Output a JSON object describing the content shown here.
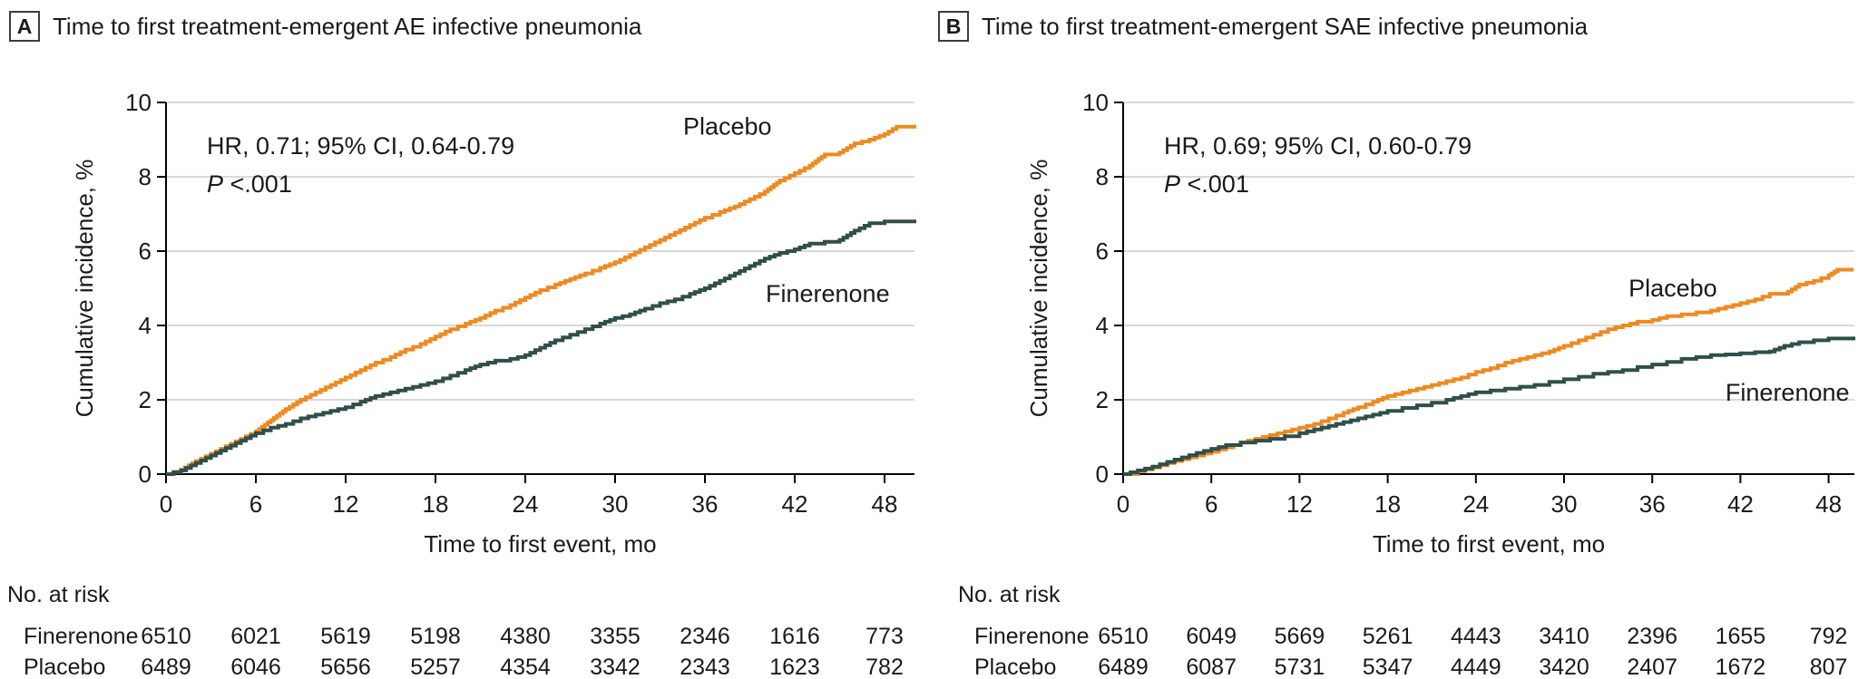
{
  "figure": {
    "panels": [
      {
        "letter": "A",
        "title": "Time to first treatment-emergent AE infective pneumonia"
      },
      {
        "letter": "B",
        "title": "Time to first treatment-emergent SAE infective pneumonia"
      }
    ]
  },
  "chart_data": [
    {
      "type": "line",
      "subtype": "kaplan-meier-cumulative-incidence",
      "panel_letter": "A",
      "title": "Time to first treatment-emergent AE infective pneumonia",
      "xlabel": "Time to first event, mo",
      "ylabel": "Cumulative incidence, %",
      "xlim": [
        0,
        50
      ],
      "ylim": [
        0,
        10
      ],
      "xticks": [
        0,
        6,
        12,
        18,
        24,
        30,
        36,
        42,
        48
      ],
      "yticks": [
        0,
        2,
        4,
        6,
        8,
        10
      ],
      "grid": true,
      "gridline_color": "#D9D9D9",
      "annotation": {
        "hr_line": "HR, 0.71; 95% CI, 0.64-0.79",
        "p_italic": "P",
        "p_rest": " <.001"
      },
      "series": [
        {
          "name": "Placebo",
          "color": "#EE8A22",
          "label_x": 37.5,
          "label_y": 9.35,
          "points": [
            [
              0,
              0
            ],
            [
              1,
              0.12
            ],
            [
              2,
              0.35
            ],
            [
              3,
              0.55
            ],
            [
              4,
              0.75
            ],
            [
              5,
              0.95
            ],
            [
              6,
              1.15
            ],
            [
              7,
              1.45
            ],
            [
              8,
              1.75
            ],
            [
              9,
              2.0
            ],
            [
              10,
              2.2
            ],
            [
              11,
              2.4
            ],
            [
              12,
              2.6
            ],
            [
              13,
              2.8
            ],
            [
              14,
              3.0
            ],
            [
              15,
              3.15
            ],
            [
              16,
              3.35
            ],
            [
              17,
              3.5
            ],
            [
              18,
              3.7
            ],
            [
              19,
              3.9
            ],
            [
              20,
              4.05
            ],
            [
              21,
              4.2
            ],
            [
              22,
              4.4
            ],
            [
              23,
              4.55
            ],
            [
              24,
              4.75
            ],
            [
              25,
              4.95
            ],
            [
              26,
              5.1
            ],
            [
              27,
              5.25
            ],
            [
              28,
              5.4
            ],
            [
              29,
              5.55
            ],
            [
              30,
              5.7
            ],
            [
              31,
              5.9
            ],
            [
              32,
              6.1
            ],
            [
              33,
              6.3
            ],
            [
              34,
              6.5
            ],
            [
              35,
              6.7
            ],
            [
              36,
              6.9
            ],
            [
              37,
              7.05
            ],
            [
              38,
              7.2
            ],
            [
              39,
              7.4
            ],
            [
              40,
              7.6
            ],
            [
              41,
              7.9
            ],
            [
              42,
              8.1
            ],
            [
              43,
              8.3
            ],
            [
              44,
              8.6
            ],
            [
              45,
              8.65
            ],
            [
              46,
              8.9
            ],
            [
              47,
              9.0
            ],
            [
              48,
              9.15
            ],
            [
              48.8,
              9.35
            ],
            [
              50,
              9.4
            ]
          ]
        },
        {
          "name": "Finerenone",
          "color": "#2F4F4B",
          "label_x": 44.2,
          "label_y": 4.85,
          "points": [
            [
              0,
              0
            ],
            [
              1,
              0.1
            ],
            [
              2,
              0.3
            ],
            [
              3,
              0.5
            ],
            [
              4,
              0.7
            ],
            [
              5,
              0.9
            ],
            [
              6,
              1.1
            ],
            [
              7,
              1.25
            ],
            [
              8,
              1.35
            ],
            [
              9,
              1.5
            ],
            [
              10,
              1.6
            ],
            [
              11,
              1.7
            ],
            [
              12,
              1.8
            ],
            [
              13,
              1.95
            ],
            [
              14,
              2.1
            ],
            [
              15,
              2.2
            ],
            [
              16,
              2.3
            ],
            [
              17,
              2.4
            ],
            [
              18,
              2.5
            ],
            [
              19,
              2.65
            ],
            [
              20,
              2.8
            ],
            [
              21,
              2.95
            ],
            [
              22,
              3.05
            ],
            [
              23,
              3.1
            ],
            [
              24,
              3.2
            ],
            [
              25,
              3.4
            ],
            [
              26,
              3.6
            ],
            [
              27,
              3.75
            ],
            [
              28,
              3.9
            ],
            [
              29,
              4.05
            ],
            [
              30,
              4.2
            ],
            [
              31,
              4.3
            ],
            [
              32,
              4.45
            ],
            [
              33,
              4.6
            ],
            [
              34,
              4.7
            ],
            [
              35,
              4.85
            ],
            [
              36,
              5.0
            ],
            [
              37,
              5.2
            ],
            [
              38,
              5.4
            ],
            [
              39,
              5.6
            ],
            [
              40,
              5.8
            ],
            [
              41,
              5.95
            ],
            [
              42,
              6.05
            ],
            [
              43,
              6.2
            ],
            [
              44,
              6.25
            ],
            [
              45,
              6.3
            ],
            [
              46,
              6.55
            ],
            [
              47,
              6.75
            ],
            [
              48,
              6.8
            ],
            [
              50,
              6.85
            ]
          ]
        }
      ],
      "risk_table": {
        "header": "No. at risk",
        "months": [
          0,
          6,
          12,
          18,
          24,
          30,
          36,
          42,
          48
        ],
        "rows": [
          {
            "name": "Finerenone",
            "counts": [
              "6510",
              "6021",
              "5619",
              "5198",
              "4380",
              "3355",
              "2346",
              "1616",
              "773"
            ]
          },
          {
            "name": "Placebo",
            "counts": [
              "6489",
              "6046",
              "5656",
              "5257",
              "4354",
              "3342",
              "2343",
              "1623",
              "782"
            ]
          }
        ]
      }
    },
    {
      "type": "line",
      "subtype": "kaplan-meier-cumulative-incidence",
      "panel_letter": "B",
      "title": "Time to first treatment-emergent SAE infective pneumonia",
      "xlabel": "Time to first event, mo",
      "ylabel": "Cumulative incidence, %",
      "xlim": [
        0,
        50
      ],
      "ylim": [
        0,
        10
      ],
      "xticks": [
        0,
        6,
        12,
        18,
        24,
        30,
        36,
        42,
        48
      ],
      "yticks": [
        0,
        2,
        4,
        6,
        8,
        10
      ],
      "grid": true,
      "gridline_color": "#D9D9D9",
      "annotation": {
        "hr_line": "HR, 0.69; 95% CI, 0.60-0.79",
        "p_italic": "P",
        "p_rest": " <.001"
      },
      "series": [
        {
          "name": "Placebo",
          "color": "#EE8A22",
          "label_x": 37.4,
          "label_y": 5.0,
          "points": [
            [
              0,
              0
            ],
            [
              1,
              0.08
            ],
            [
              2,
              0.18
            ],
            [
              3,
              0.3
            ],
            [
              4,
              0.4
            ],
            [
              5,
              0.5
            ],
            [
              6,
              0.6
            ],
            [
              7,
              0.72
            ],
            [
              8,
              0.85
            ],
            [
              9,
              0.95
            ],
            [
              10,
              1.05
            ],
            [
              11,
              1.15
            ],
            [
              12,
              1.25
            ],
            [
              13,
              1.35
            ],
            [
              14,
              1.5
            ],
            [
              15,
              1.65
            ],
            [
              16,
              1.8
            ],
            [
              17,
              1.95
            ],
            [
              18,
              2.1
            ],
            [
              19,
              2.2
            ],
            [
              20,
              2.3
            ],
            [
              21,
              2.4
            ],
            [
              22,
              2.5
            ],
            [
              23,
              2.6
            ],
            [
              24,
              2.75
            ],
            [
              25,
              2.85
            ],
            [
              26,
              3.0
            ],
            [
              27,
              3.1
            ],
            [
              28,
              3.2
            ],
            [
              29,
              3.3
            ],
            [
              30,
              3.45
            ],
            [
              31,
              3.6
            ],
            [
              32,
              3.75
            ],
            [
              33,
              3.9
            ],
            [
              34,
              4.0
            ],
            [
              35,
              4.1
            ],
            [
              36,
              4.15
            ],
            [
              37,
              4.25
            ],
            [
              38,
              4.3
            ],
            [
              39,
              4.35
            ],
            [
              40,
              4.4
            ],
            [
              41,
              4.5
            ],
            [
              42,
              4.6
            ],
            [
              43,
              4.7
            ],
            [
              44,
              4.85
            ],
            [
              45,
              4.85
            ],
            [
              46,
              5.1
            ],
            [
              47,
              5.2
            ],
            [
              48,
              5.35
            ],
            [
              48.6,
              5.5
            ],
            [
              49.7,
              5.5
            ]
          ]
        },
        {
          "name": "Finerenone",
          "color": "#2F4F4B",
          "label_x": 45.2,
          "label_y": 2.2,
          "points": [
            [
              0,
              0
            ],
            [
              1,
              0.1
            ],
            [
              2,
              0.2
            ],
            [
              3,
              0.33
            ],
            [
              4,
              0.45
            ],
            [
              5,
              0.57
            ],
            [
              6,
              0.68
            ],
            [
              7,
              0.78
            ],
            [
              8,
              0.85
            ],
            [
              9,
              0.9
            ],
            [
              10,
              0.95
            ],
            [
              11,
              1.02
            ],
            [
              12,
              1.1
            ],
            [
              13,
              1.2
            ],
            [
              14,
              1.3
            ],
            [
              15,
              1.4
            ],
            [
              16,
              1.5
            ],
            [
              17,
              1.6
            ],
            [
              18,
              1.7
            ],
            [
              19,
              1.78
            ],
            [
              20,
              1.85
            ],
            [
              21,
              1.92
            ],
            [
              22,
              2.0
            ],
            [
              23,
              2.1
            ],
            [
              24,
              2.2
            ],
            [
              25,
              2.25
            ],
            [
              26,
              2.3
            ],
            [
              27,
              2.35
            ],
            [
              28,
              2.4
            ],
            [
              29,
              2.48
            ],
            [
              30,
              2.55
            ],
            [
              31,
              2.62
            ],
            [
              32,
              2.7
            ],
            [
              33,
              2.75
            ],
            [
              34,
              2.8
            ],
            [
              35,
              2.88
            ],
            [
              36,
              2.95
            ],
            [
              37,
              3.02
            ],
            [
              38,
              3.1
            ],
            [
              39,
              3.15
            ],
            [
              40,
              3.2
            ],
            [
              41,
              3.22
            ],
            [
              42,
              3.25
            ],
            [
              43,
              3.28
            ],
            [
              44,
              3.3
            ],
            [
              45,
              3.45
            ],
            [
              46,
              3.55
            ],
            [
              47,
              3.6
            ],
            [
              48,
              3.65
            ],
            [
              49.7,
              3.7
            ]
          ]
        }
      ],
      "risk_table": {
        "header": "No. at risk",
        "months": [
          0,
          6,
          12,
          18,
          24,
          30,
          36,
          42,
          48
        ],
        "rows": [
          {
            "name": "Finerenone",
            "counts": [
              "6510",
              "6049",
              "5669",
              "5261",
              "4443",
              "3410",
              "2396",
              "1655",
              "792"
            ]
          },
          {
            "name": "Placebo",
            "counts": [
              "6489",
              "6087",
              "5731",
              "5347",
              "4449",
              "3420",
              "2407",
              "1672",
              "807"
            ]
          }
        ]
      }
    }
  ]
}
